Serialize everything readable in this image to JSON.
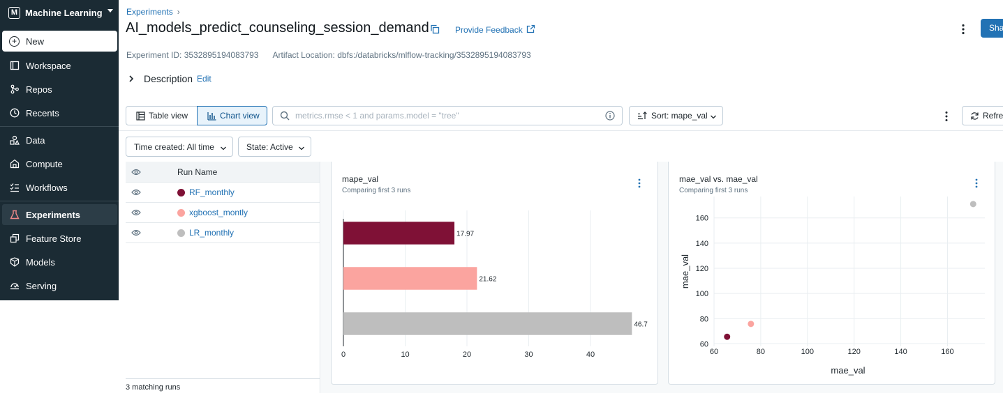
{
  "sidebar": {
    "persona": "Machine Learning",
    "new_label": "New",
    "items": [
      {
        "label": "Workspace"
      },
      {
        "label": "Repos"
      },
      {
        "label": "Recents"
      },
      {
        "label": "Data"
      },
      {
        "label": "Compute"
      },
      {
        "label": "Workflows"
      },
      {
        "label": "Experiments"
      },
      {
        "label": "Feature Store"
      },
      {
        "label": "Models"
      },
      {
        "label": "Serving"
      }
    ]
  },
  "header": {
    "breadcrumb": "Experiments",
    "title": "AI_models_predict_counseling_session_demand",
    "feedback": "Provide Feedback",
    "share_label": "Shar",
    "experiment_id": "Experiment ID: 3532895194083793",
    "artifact_location": "Artifact Location: dbfs:/databricks/mlflow-tracking/3532895194083793",
    "description_label": "Description",
    "edit_label": "Edit"
  },
  "toolbar": {
    "table_view": "Table view",
    "chart_view": "Chart view",
    "search_placeholder": "metrics.rmse < 1 and params.model = \"tree\"",
    "sort_label": "Sort: mape_val",
    "refresh_label": "Refres"
  },
  "filters": {
    "time": "Time created: All time",
    "state": "State: Active"
  },
  "runs": {
    "header": "Run Name",
    "rows": [
      {
        "name": "RF_monthly",
        "color": "#7f1136"
      },
      {
        "name": "xgboost_montly",
        "color": "#fba49f"
      },
      {
        "name": "LR_monthly",
        "color": "#bebebe"
      }
    ],
    "footer": "3 matching runs"
  },
  "chart_data": [
    {
      "type": "bar",
      "title": "mape_val",
      "subtitle": "Comparing first 3 runs",
      "orientation": "horizontal",
      "categories": [
        "RF_monthly",
        "xgboost_montly",
        "LR_monthly"
      ],
      "values": [
        17.97,
        21.62,
        46.7
      ],
      "value_labels": [
        "17.97",
        "21.62",
        "46.7"
      ],
      "colors": [
        "#7f1136",
        "#fba49f",
        "#bebebe"
      ],
      "xlim": [
        0,
        47
      ],
      "xticks": [
        "0",
        "10",
        "20",
        "30",
        "40"
      ],
      "grid": true
    },
    {
      "type": "scatter",
      "title": "mae_val vs. mae_val",
      "subtitle": "Comparing first 3 runs",
      "xlabel": "mae_val",
      "ylabel": "mae_val",
      "points": [
        {
          "x": 65.6,
          "y": 65.6,
          "color": "#7f1136"
        },
        {
          "x": 75.8,
          "y": 75.8,
          "color": "#fba49f"
        },
        {
          "x": 171.0,
          "y": 171.0,
          "color": "#bebebe"
        }
      ],
      "xlim": [
        60,
        176
      ],
      "ylim": [
        58,
        177
      ],
      "xticks": [
        "60",
        "80",
        "100",
        "120",
        "140",
        "160"
      ],
      "yticks": [
        "60",
        "80",
        "100",
        "120",
        "140",
        "160"
      ],
      "grid": true
    }
  ]
}
